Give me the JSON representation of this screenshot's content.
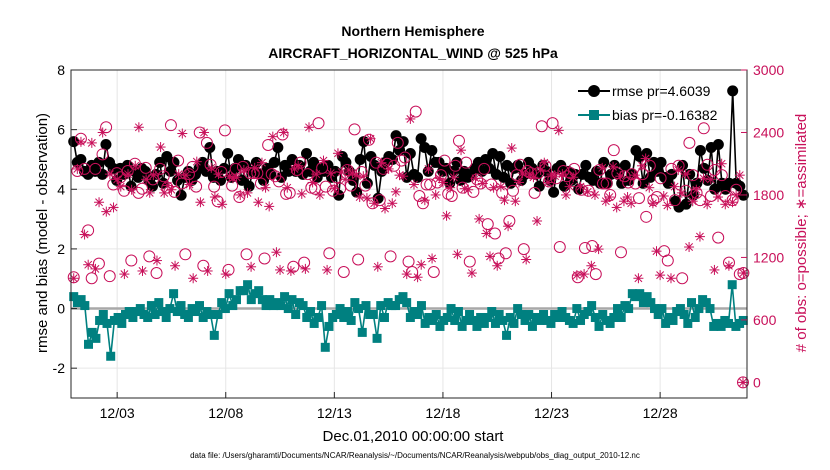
{
  "chart_data": {
    "type": "line",
    "title": "Northern Hemisphere",
    "subtitle": "AIRCRAFT_HORIZONTAL_WIND @ 525 hPa",
    "xlabel": "Dec.01,2010 00:00:00 start",
    "ylabel": "rmse and bias (model - observation)",
    "y2label": "# of obs: o=possible; ∗=assimilated",
    "footnote": "data file: /Users/gharamti/Documents/NCAR/Reanalysis/~/Documents/NCAR/Reanalysis/webpub/obs_diag_output_2010-12.nc",
    "x_tick_labels": [
      "12/03",
      "12/08",
      "12/13",
      "12/18",
      "12/23",
      "12/28"
    ],
    "x_tick_days": [
      3,
      8,
      13,
      18,
      23,
      28
    ],
    "xlim_days": [
      0.875,
      32.0
    ],
    "y_ticks": [
      "-2",
      "0",
      "2",
      "4",
      "6",
      "8"
    ],
    "ylim": [
      -3,
      8
    ],
    "y2_ticks": [
      "0",
      "600",
      "1200",
      "1800",
      "2400",
      "3000"
    ],
    "y2lim": [
      -150,
      3000
    ],
    "grid": true,
    "legend": {
      "location": "top-right",
      "entries": [
        "rmse pr=4.6039",
        "bias pr=-0.16382"
      ]
    },
    "colors": {
      "rmse": "#000000",
      "bias": "#008080",
      "obs": "#c8105a",
      "zero_line": "#a8a8a8",
      "grid": "#e6e6e6"
    },
    "series": [
      {
        "name": "rmse",
        "values": [
          5.6,
          4.9,
          5.0,
          4.6,
          4.5,
          4.8,
          4.6,
          4.9,
          4.5,
          5.5,
          4.9,
          4.7,
          4.3,
          4.7,
          4.5,
          4.8,
          4.1,
          4.6,
          4.4,
          4.7,
          4.6,
          4.3,
          4.1,
          4.5,
          4.9,
          4.2,
          5.1,
          4.6,
          4.9,
          4.3,
          3.8,
          4.4,
          4.6,
          4.3,
          4.5,
          4.7,
          4.9,
          4.6,
          5.4,
          4.4,
          4.6,
          4.3,
          4.7,
          5.2,
          4.4,
          4.7,
          5.0,
          4.3,
          4.8,
          4.1,
          4.6,
          4.9,
          4.5,
          4.3,
          4.7,
          4.5,
          4.9,
          5.4,
          4.4,
          4.8,
          4.6,
          5.0,
          4.6,
          4.8,
          4.5,
          5.2,
          4.6,
          4.9,
          4.4,
          4.7,
          4.6,
          4.8,
          4.4,
          4.6,
          3.8,
          5.1,
          4.9,
          4.6,
          4.3,
          3.9,
          5.0,
          5.6,
          4.2,
          5.1,
          4.8,
          3.7,
          4.6,
          4.9,
          5.1,
          5.0,
          5.8,
          5.3,
          5.6,
          4.4,
          5.2,
          4.5,
          4.4,
          5.7,
          5.4,
          4.6,
          5.3,
          4.9,
          4.9,
          4.6,
          4.7,
          4.2,
          4.6,
          4.9,
          4.3,
          4.6,
          4.4,
          4.5,
          4.7,
          4.9,
          4.6,
          5.0,
          4.7,
          5.2,
          4.5,
          5.1,
          4.4,
          4.8,
          4.2,
          4.7,
          4.8,
          4.3,
          4.5,
          4.9,
          4.7,
          4.5,
          4.1,
          4.8,
          4.6,
          4.3,
          3.9,
          4.7,
          4.8,
          4.1,
          4.6,
          4.3,
          4.5,
          4.0,
          4.5,
          4.8,
          4.4,
          4.3,
          4.6,
          4.2,
          4.9,
          4.2,
          4.5,
          4.8,
          4.5,
          4.2,
          4.8,
          4.3,
          4.5,
          5.3,
          5.1,
          4.2,
          5.2,
          4.4,
          4.9,
          4.6,
          4.9,
          4.4,
          4.2,
          4.5,
          3.6,
          3.4,
          4.8,
          3.5,
          4.5,
          3.8,
          4.2,
          5.3,
          4.7,
          4.3,
          5.4,
          4.0,
          5.5,
          4.2,
          4.0,
          4.2,
          7.3,
          4.2,
          4.1,
          3.8
        ]
      },
      {
        "name": "bias",
        "values": [
          0.4,
          0.2,
          0.3,
          0.1,
          -1.2,
          -0.8,
          -1.0,
          -0.4,
          -0.2,
          -0.5,
          -1.6,
          -0.4,
          -0.3,
          -0.5,
          -0.2,
          -0.1,
          -0.3,
          -0.1,
          0.0,
          -0.2,
          -0.3,
          0.1,
          -0.2,
          0.2,
          -0.1,
          -0.3,
          0.0,
          0.5,
          -0.1,
          0.1,
          -0.2,
          -0.3,
          0.0,
          -0.1,
          0.1,
          -0.3,
          -0.1,
          -0.2,
          -0.9,
          -0.2,
          0.2,
          0.0,
          0.5,
          0.1,
          0.3,
          0.6,
          0.6,
          0.8,
          0.3,
          0.5,
          0.6,
          0.3,
          0.1,
          0.3,
          0.1,
          0.2,
          0.1,
          0.4,
          0.0,
          0.3,
          -0.2,
          0.2,
          0.1,
          -0.3,
          -0.1,
          -0.5,
          -0.3,
          0.1,
          -1.3,
          -0.6,
          -0.3,
          -0.2,
          0.0,
          -0.3,
          -0.1,
          -0.4,
          0.2,
          0.0,
          -0.8,
          0.1,
          -0.2,
          -0.2,
          -1.0,
          0.1,
          -0.3,
          0.2,
          0.1,
          0.1,
          0.3,
          0.4,
          0.2,
          -0.3,
          -0.1,
          -0.2,
          0.1,
          -0.5,
          -0.3,
          -0.4,
          -0.2,
          -0.6,
          -0.4,
          -0.3,
          0.0,
          -0.4,
          -0.1,
          -0.6,
          -0.4,
          -0.2,
          -0.4,
          -0.6,
          -0.3,
          -0.5,
          -0.3,
          -0.1,
          -0.5,
          -0.2,
          -0.4,
          -0.9,
          -0.3,
          -0.5,
          0.0,
          -0.2,
          -0.4,
          -0.2,
          -0.6,
          -0.3,
          -0.4,
          -0.2,
          -0.4,
          -0.5,
          -0.2,
          -0.3,
          -0.1,
          -0.3,
          -0.4,
          -0.5,
          0.0,
          -0.4,
          -0.2,
          -0.1,
          0.1,
          -0.3,
          -0.6,
          -0.2,
          -0.4,
          -0.5,
          -0.3,
          0.0,
          -0.3,
          0.1,
          0.0,
          0.5,
          0.4,
          0.5,
          0.2,
          0.4,
          0.2,
          0.0,
          -0.2,
          0.0,
          -0.5,
          -0.3,
          -0.4,
          -0.1,
          0.0,
          -0.2,
          -0.5,
          0.2,
          -0.3,
          0.0,
          0.3,
          0.2,
          0.0,
          -0.6,
          -0.5,
          -0.6,
          -0.4,
          -0.5,
          0.8,
          -0.6,
          -0.5,
          -0.4
        ]
      },
      {
        "name": "obs_possible",
        "axis": "right",
        "values": [
          1010,
          2030,
          2340,
          2050,
          1460,
          1000,
          2050,
          1140,
          2190,
          2450,
          1020,
          1900,
          2010,
          1970,
          1840,
          2030,
          1170,
          2100,
          1820,
          1860,
          2060,
          1210,
          1950,
          1050,
          2050,
          1980,
          1870,
          2470,
          1830,
          2130,
          1910,
          1230,
          2000,
          2070,
          1880,
          2400,
          1120,
          2300,
          2090,
          1880,
          1740,
          2020,
          2420,
          1080,
          1890,
          2050,
          1780,
          2070,
          1230,
          2010,
          2010,
          2010,
          1910,
          1190,
          2280,
          2000,
          1980,
          1930,
          2380,
          1810,
          1820,
          1110,
          2040,
          2110,
          1150,
          2000,
          1870,
          1860,
          2490,
          2060,
          1880,
          1240,
          1840,
          1970,
          1860,
          1060,
          2040,
          1890,
          2430,
          1180,
          2020,
          1890,
          2330,
          1720,
          2110,
          1750,
          2050,
          2100,
          1210,
          2080,
          2300,
          2130,
          2160,
          1160,
          1060,
          2600,
          1790,
          1720,
          1900,
          1900,
          1060,
          1920,
          1990,
          2130,
          1810,
          1790,
          2080,
          2320,
          1870,
          2110,
          1160,
          1830,
          1950,
          1910,
          2050,
          1520,
          1900,
          1430,
          1190,
          1820,
          1240,
          1550,
          1840,
          1990,
          2090,
          1280,
          2030,
          2010,
          1820,
          2010,
          2460,
          2080,
          1930,
          2490,
          1960,
          1300,
          2030,
          1980,
          2010,
          2050,
          1010,
          1850,
          1290,
          1840,
          1310,
          1040,
          2040,
          1910,
          1910,
          1800,
          2230,
          2010,
          1250,
          1980,
          1920,
          2000,
          1910,
          1770,
          2000,
          1590,
          2080,
          1750,
          1780,
          1960,
          1260,
          1170,
          2050,
          1750,
          2080,
          1000,
          1840,
          2300,
          1990,
          1820,
          1750,
          2440,
          2090,
          1790,
          2040,
          1390,
          1990,
          1790,
          1150,
          1750,
          1850,
          1040,
          1050
        ]
      },
      {
        "name": "obs_assimilated",
        "axis": "right",
        "values": [
          1000,
          2050,
          2310,
          1420,
          1130,
          2300,
          1090,
          1730,
          2400,
          1640,
          2000,
          1680,
          1950,
          1880,
          1040,
          2000,
          1850,
          2080,
          2450,
          1070,
          1950,
          1820,
          1990,
          1170,
          2260,
          1820,
          1890,
          1850,
          1120,
          2000,
          2390,
          1990,
          1900,
          1000,
          2120,
          1730,
          2400,
          1070,
          2060,
          1780,
          2000,
          1710,
          1040,
          1980,
          1960,
          1970,
          1800,
          2040,
          1820,
          1110,
          2060,
          1730,
          2110,
          1870,
          1690,
          2360,
          1250,
          1080,
          2400,
          1870,
          1070,
          2050,
          2080,
          1810,
          1090,
          2450,
          1920,
          2000,
          1800,
          2130,
          1080,
          2010,
          1860,
          2200,
          2020,
          1950,
          2040,
          2010,
          1990,
          1780,
          1980,
          1770,
          2340,
          1720,
          1110,
          2110,
          1670,
          2050,
          1720,
          1830,
          1990,
          1980,
          1040,
          2530,
          1900,
          1010,
          1130,
          1750,
          2050,
          1190,
          1800,
          1960,
          1920,
          1600,
          1870,
          1970,
          1230,
          2230,
          1860,
          1850,
          1050,
          1960,
          1570,
          1910,
          1430,
          1210,
          1870,
          1120,
          1880,
          1750,
          1500,
          2250,
          1740,
          1920,
          2010,
          1180,
          2000,
          1970,
          1550,
          2040,
          2110,
          1920,
          2000,
          1980,
          2420,
          2000,
          1800,
          1880,
          1970,
          1030,
          1880,
          1040,
          1830,
          1120,
          1800,
          1280,
          2060,
          1740,
          1780,
          2070,
          1680,
          1980,
          1740,
          1780,
          1720,
          1990,
          1000,
          2080,
          2150,
          1870,
          1720,
          1260,
          1030,
          1790,
          1700,
          1000,
          1880,
          2040,
          1820,
          2000,
          1300,
          1740,
          1850,
          1400,
          1960,
          1710,
          1950,
          1080,
          1780,
          2100,
          1710,
          1120,
          1730,
          1800,
          1990,
          1050
        ]
      }
    ]
  }
}
